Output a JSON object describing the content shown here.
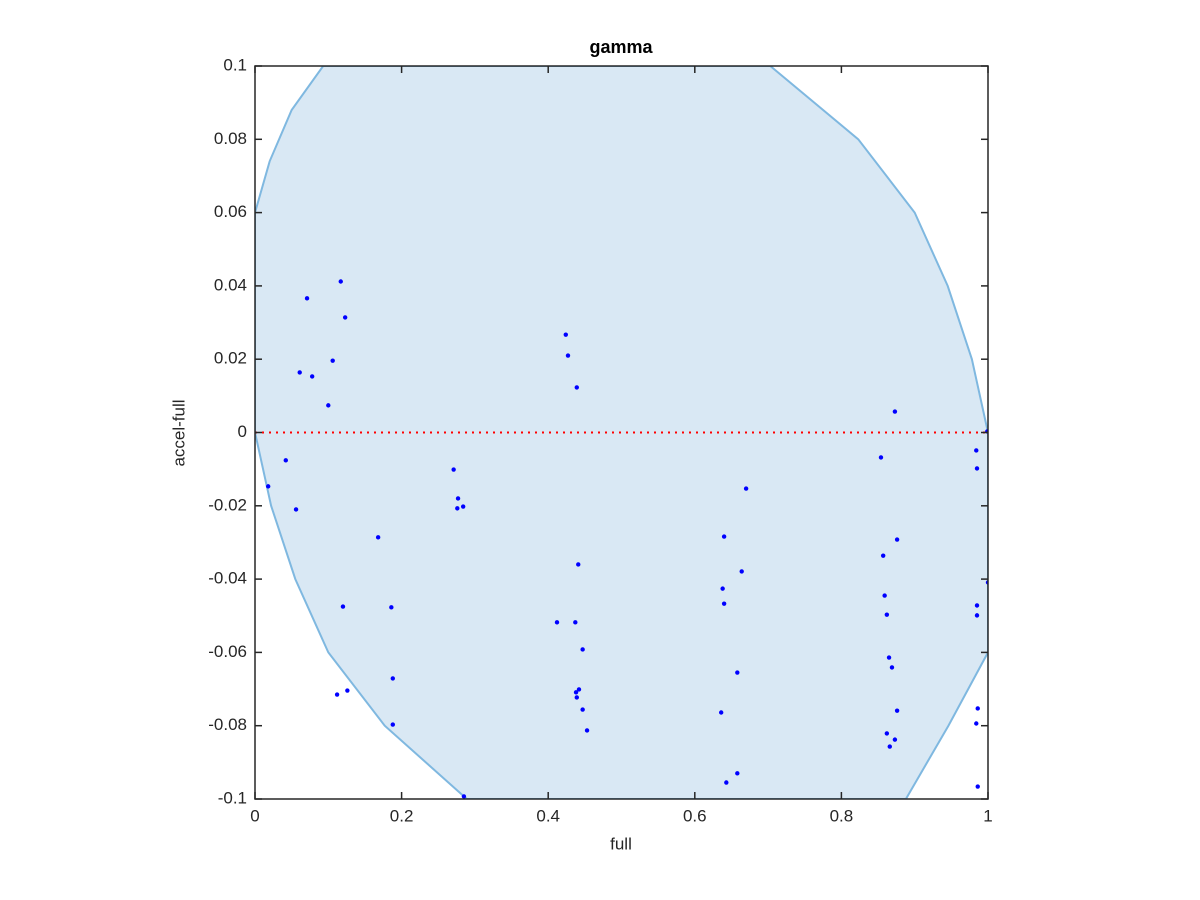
{
  "chart_data": {
    "type": "scatter",
    "title": "gamma",
    "x_label": "full",
    "y_label": "accel-full",
    "xlim": [
      0,
      1
    ],
    "ylim": [
      -0.1,
      0.1
    ],
    "xticks": [
      0,
      0.2,
      0.4,
      0.6,
      0.8,
      1
    ],
    "yticks": [
      -0.1,
      -0.08,
      -0.06,
      -0.04,
      -0.02,
      0,
      0.02,
      0.04,
      0.06,
      0.08,
      0.1
    ],
    "region": {
      "color": "#d9e8f4",
      "edge_color": "#7fb8e0",
      "x": [
        0,
        0.02,
        0.05,
        0.093,
        0.703,
        0.823,
        0.9,
        0.945,
        0.978,
        1,
        1,
        0.946,
        0.888,
        0.289,
        0.177,
        0.1,
        0.055,
        0.022,
        0
      ],
      "y": [
        0.06,
        0.074,
        0.088,
        0.1,
        0.1,
        0.08,
        0.06,
        0.04,
        0.02,
        0,
        -0.06,
        -0.08,
        -0.1,
        -0.1,
        -0.08,
        -0.06,
        -0.04,
        -0.02,
        0
      ]
    },
    "reference_line": {
      "y": 0,
      "color": "#ff0000"
    },
    "series": [
      {
        "color": "#0000ff",
        "x": [
          0.018,
          0.042,
          0.056,
          0.061,
          0.071,
          0.078,
          0.1,
          0.106,
          0.117,
          0.123,
          0.12,
          0.112,
          0.126,
          0.168,
          0.186,
          0.188,
          0.188,
          0.271,
          0.277,
          0.276,
          0.284,
          0.285,
          0.424,
          0.427,
          0.439,
          0.412,
          0.437,
          0.441,
          0.447,
          0.438,
          0.442,
          0.439,
          0.447,
          0.453,
          0.64,
          0.638,
          0.64,
          0.67,
          0.664,
          0.658,
          0.636,
          0.658,
          0.643,
          0.873,
          0.854,
          0.857,
          0.859,
          0.862,
          0.865,
          0.869,
          0.876,
          0.876,
          0.862,
          0.866,
          0.873,
          0.984,
          0.985,
          0.999,
          1,
          0.985,
          0.985,
          0.986,
          0.984,
          0.986
        ],
        "values": [
          -0.0147,
          -0.0076,
          -0.021,
          0.0164,
          0.0366,
          0.0153,
          0.0074,
          0.0196,
          0.0412,
          0.0314,
          -0.0475,
          -0.0715,
          -0.0704,
          -0.0286,
          -0.0477,
          -0.0671,
          -0.0797,
          -0.0101,
          -0.018,
          -0.0207,
          -0.0202,
          -0.0993,
          0.0267,
          0.021,
          0.0123,
          -0.0518,
          -0.0518,
          -0.036,
          -0.0592,
          -0.0709,
          -0.0701,
          -0.0723,
          -0.0756,
          -0.0813,
          -0.0284,
          -0.0426,
          -0.0467,
          -0.0153,
          -0.0379,
          -0.0655,
          -0.0764,
          -0.093,
          -0.0955,
          0.0057,
          -0.0068,
          -0.0336,
          -0.0445,
          -0.0497,
          -0.0614,
          -0.0641,
          -0.0292,
          -0.0759,
          -0.0821,
          -0.0857,
          -0.0838,
          -0.0049,
          -0.0098,
          0.0003,
          -0.0409,
          -0.0472,
          -0.0499,
          -0.0753,
          -0.0794,
          -0.0966
        ]
      }
    ]
  }
}
